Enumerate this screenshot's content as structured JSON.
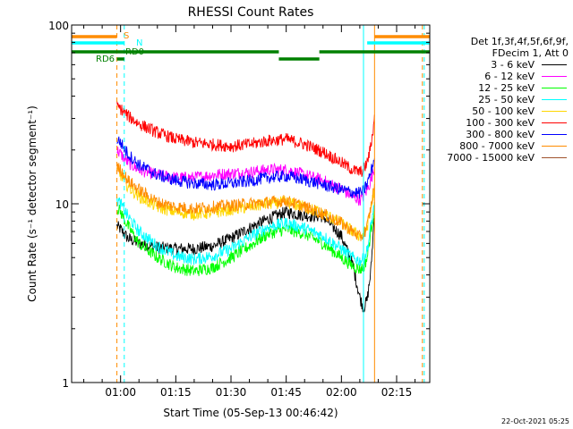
{
  "chart_data": {
    "type": "line",
    "title": "RHESSI Count Rates",
    "xlabel": "Start Time (05-Sep-13 00:46:42)",
    "ylabel": "Count Rate (s⁻¹ detector segment⁻¹)",
    "y_scale": "log",
    "ylim": [
      1,
      100
    ],
    "xlim": [
      "00:46:42",
      "02:24:00"
    ],
    "x_tick_labels": [
      "01:00",
      "01:15",
      "01:30",
      "01:45",
      "02:00",
      "02:15"
    ],
    "y_tick_labels": [
      "1",
      "10",
      "100"
    ],
    "legend_header": [
      "Det 1f,3f,4f,5f,6f,9f,",
      "FDecim 1, Att 0"
    ],
    "legend_position": "right",
    "series": [
      {
        "name": "3 - 6 keV",
        "color": "#000000",
        "x": [
          "00:59",
          "01:00",
          "01:02",
          "01:05",
          "01:10",
          "01:15",
          "01:20",
          "01:25",
          "01:30",
          "01:35",
          "01:40",
          "01:45",
          "01:50",
          "01:55",
          "02:00",
          "02:03",
          "02:05",
          "02:06",
          "02:07",
          "02:08",
          "02:09"
        ],
        "values": [
          7.5,
          7.2,
          6.4,
          6.0,
          5.7,
          5.6,
          5.6,
          5.8,
          6.4,
          7.3,
          8.2,
          9.0,
          8.6,
          8.5,
          6.6,
          4.6,
          3.0,
          2.6,
          2.9,
          4.2,
          9.0
        ]
      },
      {
        "name": "6 - 12 keV",
        "color": "#ff00ff",
        "x": [
          "00:59",
          "01:00",
          "01:02",
          "01:05",
          "01:10",
          "01:15",
          "01:20",
          "01:25",
          "01:30",
          "01:35",
          "01:40",
          "01:45",
          "01:50",
          "01:55",
          "02:00",
          "02:03",
          "02:05",
          "02:06",
          "02:07",
          "02:08",
          "02:09"
        ],
        "values": [
          20,
          19,
          17,
          15.5,
          14.5,
          14,
          14,
          14.5,
          14.8,
          15,
          15.5,
          15.5,
          14.5,
          13.5,
          12,
          11,
          10.5,
          11,
          12,
          13.5,
          16
        ]
      },
      {
        "name": "12 - 25 keV",
        "color": "#00ff00",
        "x": [
          "00:59",
          "01:00",
          "01:02",
          "01:05",
          "01:10",
          "01:15",
          "01:20",
          "01:25",
          "01:30",
          "01:35",
          "01:40",
          "01:45",
          "01:50",
          "01:55",
          "02:00",
          "02:03",
          "02:05",
          "02:06",
          "02:07",
          "02:08",
          "02:09"
        ],
        "values": [
          9.5,
          9.0,
          7.5,
          6.0,
          5.0,
          4.4,
          4.2,
          4.4,
          5.0,
          5.8,
          6.8,
          7.2,
          6.8,
          6.0,
          5.0,
          4.5,
          4.3,
          4.4,
          5.0,
          7.0,
          9.5
        ]
      },
      {
        "name": "25 - 50 keV",
        "color": "#00ffff",
        "x": [
          "00:59",
          "01:00",
          "01:02",
          "01:05",
          "01:10",
          "01:15",
          "01:20",
          "01:25",
          "01:30",
          "01:35",
          "01:40",
          "01:45",
          "01:50",
          "01:55",
          "02:00",
          "02:03",
          "02:05",
          "02:06",
          "02:07",
          "02:08",
          "02:09"
        ],
        "values": [
          10.5,
          10,
          8.5,
          7.0,
          5.8,
          5.1,
          4.9,
          5.1,
          5.6,
          6.5,
          7.4,
          7.8,
          7.3,
          6.6,
          5.6,
          5.0,
          4.8,
          4.9,
          5.5,
          7.5,
          10
        ]
      },
      {
        "name": "50 - 100 keV",
        "color": "#ffd700",
        "x": [
          "00:59",
          "01:00",
          "01:02",
          "01:05",
          "01:10",
          "01:15",
          "01:20",
          "01:25",
          "01:30",
          "01:35",
          "01:40",
          "01:45",
          "01:50",
          "01:55",
          "02:00",
          "02:03",
          "02:05",
          "02:06",
          "02:07",
          "02:08",
          "02:09"
        ],
        "values": [
          15,
          14.5,
          12.5,
          11,
          9.6,
          9.0,
          8.8,
          8.9,
          9.3,
          9.6,
          10,
          10.2,
          9.6,
          8.8,
          7.8,
          7.0,
          6.6,
          6.7,
          7.4,
          9.5,
          12
        ]
      },
      {
        "name": "100 - 300 keV",
        "color": "#ff0000",
        "x": [
          "00:59",
          "01:00",
          "01:02",
          "01:05",
          "01:10",
          "01:15",
          "01:20",
          "01:25",
          "01:30",
          "01:35",
          "01:40",
          "01:45",
          "01:50",
          "01:55",
          "02:00",
          "02:03",
          "02:05",
          "02:06",
          "02:07",
          "02:08",
          "02:09"
        ],
        "values": [
          35,
          34,
          31,
          28,
          25,
          23,
          22,
          21.5,
          21,
          21.5,
          22.5,
          23,
          21.5,
          19.5,
          17,
          15.5,
          15,
          15.5,
          17,
          21,
          30
        ]
      },
      {
        "name": "300 - 800 keV",
        "color": "#0000ff",
        "x": [
          "00:59",
          "01:00",
          "01:02",
          "01:05",
          "01:10",
          "01:15",
          "01:20",
          "01:25",
          "01:30",
          "01:35",
          "01:40",
          "01:45",
          "01:50",
          "01:55",
          "02:00",
          "02:03",
          "02:05",
          "02:06",
          "02:07",
          "02:08",
          "02:09"
        ],
        "values": [
          23,
          22,
          19,
          16.5,
          14.5,
          13.5,
          13,
          12.8,
          13,
          13.4,
          14,
          14.3,
          13.6,
          12.8,
          12,
          11.6,
          11.5,
          11.8,
          13,
          15,
          18
        ]
      },
      {
        "name": "800 - 7000 keV",
        "color": "#ff8c00",
        "x": [
          "00:59",
          "01:00",
          "01:02",
          "01:05",
          "01:10",
          "01:15",
          "01:20",
          "01:25",
          "01:30",
          "01:35",
          "01:40",
          "01:45",
          "01:50",
          "01:55",
          "02:00",
          "02:03",
          "02:05",
          "02:06",
          "02:07",
          "02:08",
          "02:09"
        ],
        "values": [
          16,
          15.5,
          13.5,
          12,
          10.2,
          9.6,
          9.4,
          9.6,
          9.8,
          10,
          10.2,
          10.4,
          9.6,
          8.8,
          7.8,
          7.0,
          6.5,
          6.7,
          7.5,
          9.5,
          13
        ]
      },
      {
        "name": "7000 - 15000 keV",
        "color": "#a0522d",
        "x": [],
        "values": []
      }
    ],
    "annotations": [
      {
        "text": "S",
        "color": "#ff8c00"
      },
      {
        "text": "N",
        "color": "#00ffff"
      },
      {
        "text": "RD6",
        "color": "#008000"
      },
      {
        "text": "RD0",
        "color": "#008000"
      }
    ],
    "state_bars": [
      {
        "color": "#ff8c00",
        "segments": [
          [
            "00:46:42",
            "00:59:00"
          ],
          [
            "02:09:00",
            "02:24:00"
          ]
        ]
      },
      {
        "color": "#00ffff",
        "segments": [
          [
            "00:46:42",
            "01:01:00"
          ],
          [
            "02:07:00",
            "02:24:00"
          ]
        ]
      },
      {
        "color": "#008000",
        "level": "upper",
        "segments": [
          [
            "00:46:42",
            "01:43:00"
          ],
          [
            "01:54:00",
            "02:24:00"
          ]
        ]
      },
      {
        "color": "#008000",
        "level": "lower",
        "segments": [
          [
            "00:59:00",
            "01:01:00"
          ],
          [
            "01:43:00",
            "01:54:00"
          ]
        ]
      }
    ],
    "vertical_markers": [
      {
        "time": "00:46:42",
        "color": "#00ffff",
        "style": "solid"
      },
      {
        "time": "00:59:00",
        "color": "#ff8c00",
        "style": "dashed"
      },
      {
        "time": "01:01:00",
        "color": "#00ffff",
        "style": "dashed"
      },
      {
        "time": "02:06:00",
        "color": "#00ffff",
        "style": "solid"
      },
      {
        "time": "02:09:00",
        "color": "#ff8c00",
        "style": "solid"
      },
      {
        "time": "02:22:00",
        "color": "#ff8c00",
        "style": "dashed"
      },
      {
        "time": "02:22:30",
        "color": "#00ffff",
        "style": "dashed"
      }
    ]
  },
  "timestamp": "22-Oct-2021 05:25"
}
